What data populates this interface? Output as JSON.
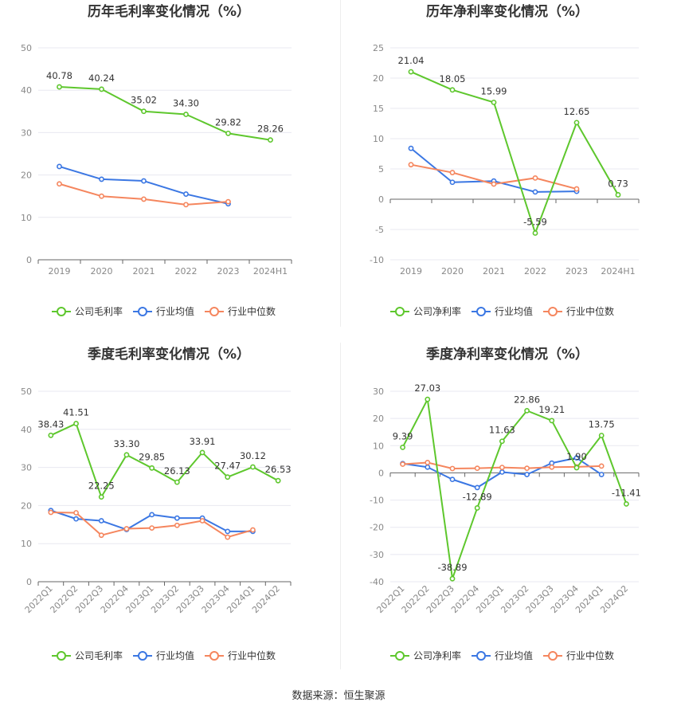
{
  "source": "数据来源：恒生聚源",
  "colors": {
    "company": "#5ec72d",
    "avg": "#3b77e3",
    "median": "#f5865e",
    "grid": "#e8e8f0",
    "axis": "#666666"
  },
  "legend": {
    "gross": "公司毛利率",
    "net": "公司净利率",
    "avg": "行业均值",
    "median": "行业中位数"
  },
  "chart_data": [
    {
      "type": "line",
      "title": "历年毛利率变化情况（%）",
      "categories": [
        "2019",
        "2020",
        "2021",
        "2022",
        "2023",
        "2024H1"
      ],
      "ylim": [
        0,
        50
      ],
      "yticks": [
        0,
        10,
        20,
        30,
        40,
        50
      ],
      "tick_rotate": false,
      "legend": "bottom",
      "series": [
        {
          "name": "公司毛利率",
          "values": [
            40.78,
            40.24,
            35.02,
            34.3,
            29.82,
            28.26
          ],
          "labels": true
        },
        {
          "name": "行业均值",
          "values": [
            22.0,
            19.0,
            18.6,
            15.5,
            13.2,
            null
          ]
        },
        {
          "name": "行业中位数",
          "values": [
            17.9,
            15.0,
            14.3,
            13.0,
            13.7,
            null
          ]
        }
      ]
    },
    {
      "type": "line",
      "title": "历年净利率变化情况（%）",
      "categories": [
        "2019",
        "2020",
        "2021",
        "2022",
        "2023",
        "2024H1"
      ],
      "ylim": [
        -10,
        25
      ],
      "yticks": [
        -10,
        -5,
        0,
        5,
        10,
        15,
        20,
        25
      ],
      "tick_rotate": false,
      "legend": "bottom",
      "series": [
        {
          "name": "公司净利率",
          "values": [
            21.04,
            18.05,
            15.99,
            -5.59,
            12.65,
            0.73
          ],
          "labels": true
        },
        {
          "name": "行业均值",
          "values": [
            8.4,
            2.8,
            3.0,
            1.2,
            1.3,
            null
          ]
        },
        {
          "name": "行业中位数",
          "values": [
            5.7,
            4.4,
            2.5,
            3.5,
            1.7,
            null
          ]
        }
      ]
    },
    {
      "type": "line",
      "title": "季度毛利率变化情况（%）",
      "categories": [
        "2022Q1",
        "2022Q2",
        "2022Q3",
        "2022Q4",
        "2023Q1",
        "2023Q2",
        "2023Q3",
        "2023Q4",
        "2024Q1",
        "2024Q2"
      ],
      "ylim": [
        0,
        50
      ],
      "yticks": [
        0,
        10,
        20,
        30,
        40,
        50
      ],
      "tick_rotate": true,
      "legend": "bottom",
      "series": [
        {
          "name": "公司毛利率",
          "values": [
            38.43,
            41.51,
            22.25,
            33.3,
            29.85,
            26.13,
            33.91,
            27.47,
            30.12,
            26.53
          ],
          "labels": true
        },
        {
          "name": "行业均值",
          "values": [
            18.7,
            16.5,
            16.0,
            13.7,
            17.6,
            16.7,
            16.7,
            13.2,
            13.2,
            null
          ]
        },
        {
          "name": "行业中位数",
          "values": [
            18.2,
            18.1,
            12.2,
            13.9,
            14.1,
            14.8,
            16.0,
            11.7,
            13.6,
            null
          ]
        }
      ]
    },
    {
      "type": "line",
      "title": "季度净利率变化情况（%）",
      "categories": [
        "2022Q1",
        "2022Q2",
        "2022Q3",
        "2022Q4",
        "2023Q1",
        "2023Q2",
        "2023Q3",
        "2023Q4",
        "2024Q1",
        "2024Q2"
      ],
      "ylim": [
        -40,
        30
      ],
      "yticks": [
        -40,
        -30,
        -20,
        -10,
        0,
        10,
        20,
        30
      ],
      "tick_rotate": true,
      "legend": "bottom",
      "series": [
        {
          "name": "公司净利率",
          "values": [
            9.39,
            27.03,
            -38.89,
            -12.89,
            11.63,
            22.86,
            19.21,
            1.9,
            13.75,
            -11.41
          ],
          "labels": true
        },
        {
          "name": "行业均值",
          "values": [
            3.4,
            2.1,
            -2.4,
            -5.4,
            0.3,
            -0.6,
            3.6,
            5.5,
            -0.6,
            null
          ]
        },
        {
          "name": "行业中位数",
          "values": [
            3.2,
            3.8,
            1.6,
            1.7,
            2.0,
            1.7,
            2.1,
            2.2,
            2.5,
            null
          ]
        }
      ]
    }
  ]
}
